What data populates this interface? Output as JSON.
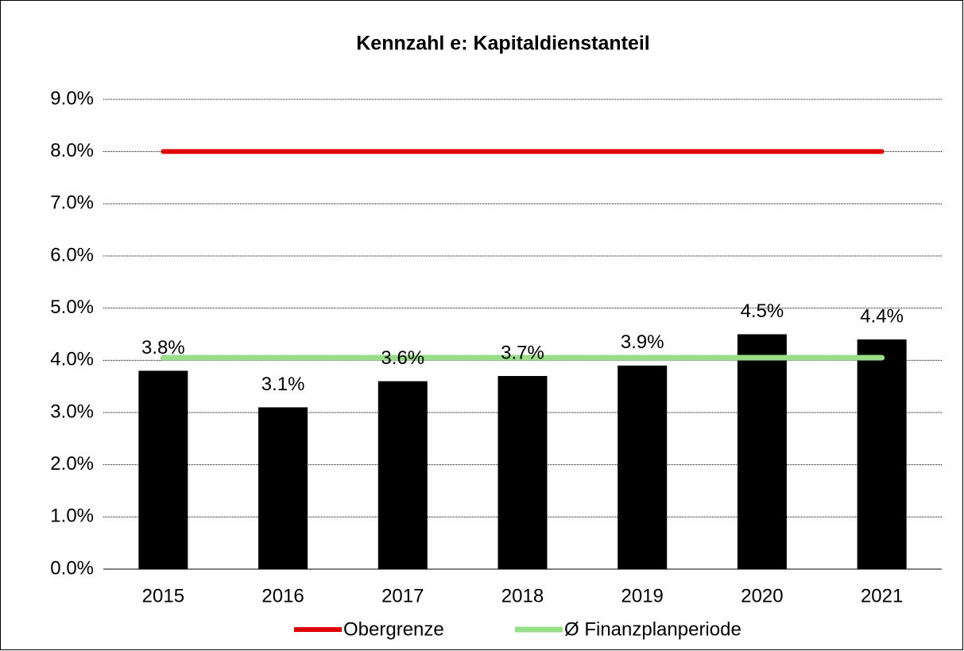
{
  "chart_data": {
    "type": "bar",
    "title": "Kennzahl e: Kapitaldienstanteil",
    "categories": [
      "2015",
      "2016",
      "2017",
      "2018",
      "2019",
      "2020",
      "2021"
    ],
    "values": [
      3.8,
      3.1,
      3.6,
      3.7,
      3.9,
      4.5,
      4.4
    ],
    "value_labels": [
      "3.8%",
      "3.1%",
      "3.6%",
      "3.7%",
      "3.9%",
      "4.5%",
      "4.4%"
    ],
    "color": "#000000",
    "series": [
      {
        "name": "Obergrenze",
        "color": "#e00000",
        "values": [
          8,
          8,
          8,
          8,
          8,
          8,
          8
        ]
      },
      {
        "name": "Ø Finanzplanperiode",
        "color": "#99dd88",
        "values": [
          4.05,
          4.05,
          4.05,
          4.05,
          4.05,
          4.05,
          4.05
        ]
      }
    ],
    "ylim": [
      0,
      9
    ],
    "yticks": [
      {
        "value": 0,
        "label": "0.0%"
      },
      {
        "value": 1,
        "label": "1.0%"
      },
      {
        "value": 2,
        "label": "2.0%"
      },
      {
        "value": 3,
        "label": "3.0%"
      },
      {
        "value": 4,
        "label": "4.0%"
      },
      {
        "value": 5,
        "label": "5.0%"
      },
      {
        "value": 6,
        "label": "6.0%"
      },
      {
        "value": 7,
        "label": "7.0%"
      },
      {
        "value": 8,
        "label": "8.0%"
      },
      {
        "value": 9,
        "label": "9.0%"
      }
    ],
    "grid": true,
    "legend": "bottom"
  }
}
